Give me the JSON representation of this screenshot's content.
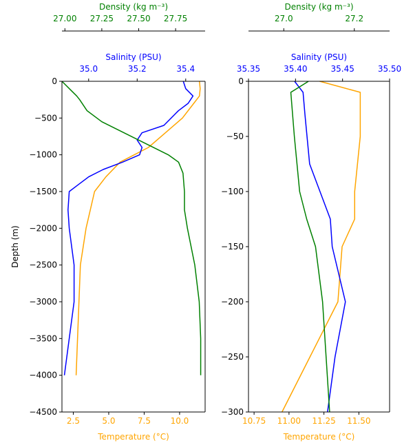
{
  "chart_data": [
    {
      "type": "line",
      "ylabel": "Depth (m)",
      "ylim": [
        -4500,
        0
      ],
      "yticks": [
        0,
        -500,
        -1000,
        -1500,
        -2000,
        -2500,
        -3000,
        -3500,
        -4000,
        -4500
      ],
      "yticklabels": [
        "0",
        "−500",
        "−1000",
        "−1500",
        "−2000",
        "−2500",
        "−3000",
        "−3500",
        "−4000",
        "−4500"
      ],
      "axes": [
        {
          "key": "temperature",
          "label": "Temperature (°C)",
          "position": "bottom",
          "color": "#ffa500",
          "xlim": [
            1.7,
            11.8
          ],
          "ticks": [
            2.5,
            5.0,
            7.5,
            10.0
          ],
          "ticklabels": [
            "2.5",
            "5.0",
            "7.5",
            "10.0"
          ]
        },
        {
          "key": "salinity",
          "label": "Salinity (PSU)",
          "position": "top",
          "color": "#0000ff",
          "xlim": [
            34.89,
            35.48
          ],
          "ticks": [
            35.0,
            35.2,
            35.4
          ],
          "ticklabels": [
            "35.0",
            "35.2",
            "35.4"
          ]
        },
        {
          "key": "density",
          "label": "Density (kg m⁻³)",
          "position": "top-outer",
          "color": "#008000",
          "xlim": [
            26.98,
            27.95
          ],
          "ticks": [
            27.0,
            27.25,
            27.5,
            27.75
          ],
          "ticklabels": [
            "27.00",
            "27.25",
            "27.50",
            "27.75"
          ]
        }
      ],
      "series": [
        {
          "axis": "temperature",
          "color": "#ffa500",
          "x": [
            11.4,
            11.45,
            11.4,
            11.0,
            10.2,
            9.0,
            7.8,
            6.8,
            5.8,
            4.8,
            4.0,
            3.7,
            3.4,
            3.2,
            3.0,
            2.9,
            2.8,
            2.7
          ],
          "y": [
            0,
            -100,
            -200,
            -300,
            -500,
            -700,
            -900,
            -1000,
            -1100,
            -1300,
            -1500,
            -1750,
            -2000,
            -2250,
            -2500,
            -3000,
            -3500,
            -4000
          ]
        },
        {
          "axis": "salinity",
          "color": "#0000ff",
          "x": [
            35.39,
            35.4,
            35.43,
            35.41,
            35.37,
            35.31,
            35.22,
            35.2,
            35.22,
            35.21,
            35.14,
            35.06,
            35.0,
            34.96,
            34.92,
            34.915,
            34.92,
            34.94,
            34.94,
            34.9
          ],
          "y": [
            0,
            -100,
            -200,
            -300,
            -400,
            -600,
            -700,
            -800,
            -900,
            -1000,
            -1100,
            -1200,
            -1300,
            -1400,
            -1500,
            -1750,
            -2000,
            -2500,
            -3000,
            -4000
          ]
        },
        {
          "axis": "density",
          "color": "#008000",
          "x": [
            26.98,
            27.03,
            27.08,
            27.1,
            27.15,
            27.25,
            27.4,
            27.55,
            27.7,
            27.77,
            27.8,
            27.81,
            27.81,
            27.83,
            27.88,
            27.91,
            27.92,
            27.92
          ],
          "y": [
            0,
            -100,
            -200,
            -250,
            -400,
            -550,
            -700,
            -850,
            -1000,
            -1100,
            -1250,
            -1500,
            -1750,
            -2000,
            -2500,
            -3000,
            -3500,
            -4000
          ]
        }
      ]
    },
    {
      "type": "line",
      "ylim": [
        -300,
        0
      ],
      "yticks": [
        0,
        -50,
        -100,
        -150,
        -200,
        -250,
        -300
      ],
      "yticklabels": [
        "0",
        "−50",
        "−100",
        "−150",
        "−200",
        "−250",
        "−300"
      ],
      "axes": [
        {
          "key": "temperature",
          "label": "Temperature (°C)",
          "position": "bottom",
          "color": "#ffa500",
          "xlim": [
            10.71,
            11.72
          ],
          "ticks": [
            10.75,
            11.0,
            11.25,
            11.5
          ],
          "ticklabels": [
            "10.75",
            "11.00",
            "11.25",
            "11.50"
          ]
        },
        {
          "key": "salinity",
          "label": "Salinity (PSU)",
          "position": "top",
          "color": "#0000ff",
          "xlim": [
            35.35,
            35.5
          ],
          "ticks": [
            35.35,
            35.4,
            35.45,
            35.5
          ],
          "ticklabels": [
            "35.35",
            "35.40",
            "35.45",
            "35.50"
          ]
        },
        {
          "key": "density",
          "label": "Density (kg m⁻³)",
          "position": "top-outer",
          "color": "#008000",
          "xlim": [
            26.9,
            27.3
          ],
          "ticks": [
            27.0,
            27.2
          ],
          "ticklabels": [
            "27.0",
            "27.2"
          ]
        }
      ],
      "series": [
        {
          "axis": "temperature",
          "color": "#ffa500",
          "x": [
            11.22,
            11.51,
            11.51,
            11.51,
            11.49,
            11.47,
            11.47,
            11.38,
            11.35,
            11.15,
            10.95
          ],
          "y": [
            0,
            -10,
            -25,
            -50,
            -75,
            -100,
            -125,
            -150,
            -200,
            -250,
            -300
          ]
        },
        {
          "axis": "salinity",
          "color": "#0000ff",
          "x": [
            35.399,
            35.408,
            35.41,
            35.415,
            35.426,
            35.437,
            35.439,
            35.453,
            35.442,
            35.434
          ],
          "y": [
            0,
            -10,
            -30,
            -75,
            -100,
            -125,
            -150,
            -200,
            -250,
            -300
          ]
        },
        {
          "axis": "density",
          "color": "#008000",
          "x": [
            27.07,
            27.02,
            27.025,
            27.03,
            27.045,
            27.065,
            27.09,
            27.11,
            27.13
          ],
          "y": [
            0,
            -10,
            -30,
            -50,
            -100,
            -125,
            -150,
            -200,
            -300
          ]
        }
      ]
    }
  ]
}
